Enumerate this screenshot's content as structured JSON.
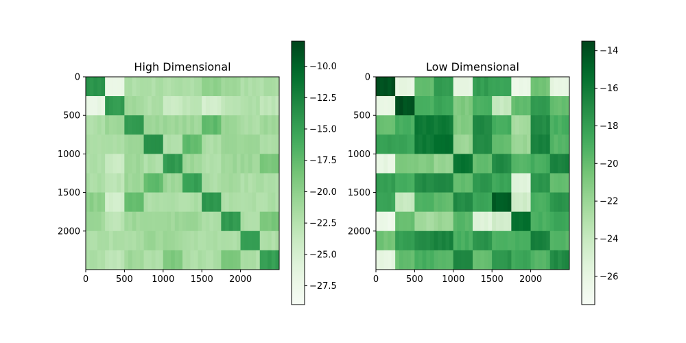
{
  "chart_data": [
    {
      "type": "heatmap",
      "title": "High Dimensional",
      "xlabel": "",
      "ylabel": "",
      "colormap": "Greens",
      "n": 2500,
      "x_ticks": [
        0,
        500,
        1000,
        1500,
        2000
      ],
      "y_ticks": [
        0,
        500,
        1000,
        1500,
        2000
      ],
      "x_tick_labels": [
        "0",
        "500",
        "1000",
        "1500",
        "2000"
      ],
      "y_tick_labels": [
        "0",
        "500",
        "1000",
        "1500",
        "2000"
      ],
      "block_boundaries": [
        0,
        250,
        500,
        750,
        1000,
        1250,
        1500,
        1750,
        2000,
        2250,
        2500
      ],
      "block_values": [
        [
          -14.0,
          -27.0,
          -22.0,
          -22.0,
          -22.0,
          -22.0,
          -20.0,
          -21.0,
          -22.0,
          -22.0
        ],
        [
          -27.0,
          -14.5,
          -21.0,
          -22.0,
          -24.0,
          -23.0,
          -25.0,
          -23.0,
          -22.0,
          -23.0
        ],
        [
          -22.0,
          -21.0,
          -14.5,
          -21.0,
          -21.0,
          -21.0,
          -17.5,
          -21.0,
          -22.0,
          -21.0
        ],
        [
          -22.0,
          -22.0,
          -21.0,
          -14.0,
          -22.0,
          -17.5,
          -22.0,
          -21.0,
          -21.0,
          -22.0
        ],
        [
          -22.0,
          -24.0,
          -21.0,
          -22.0,
          -14.5,
          -21.0,
          -22.0,
          -21.0,
          -21.0,
          -19.0
        ],
        [
          -22.0,
          -23.0,
          -21.0,
          -17.5,
          -21.0,
          -15.0,
          -22.0,
          -21.0,
          -22.0,
          -22.0
        ],
        [
          -20.0,
          -25.0,
          -17.5,
          -22.0,
          -22.0,
          -22.0,
          -14.0,
          -22.0,
          -22.0,
          -22.0
        ],
        [
          -21.0,
          -23.0,
          -21.0,
          -21.0,
          -21.0,
          -21.0,
          -22.0,
          -14.5,
          -22.0,
          -19.0
        ],
        [
          -22.0,
          -22.0,
          -22.0,
          -21.0,
          -21.0,
          -22.0,
          -22.0,
          -22.0,
          -14.5,
          -22.0
        ],
        [
          -22.0,
          -23.0,
          -21.0,
          -22.0,
          -19.0,
          -22.0,
          -22.0,
          -19.0,
          -22.0,
          -15.0
        ]
      ],
      "colorbar": {
        "vmin": -29.0,
        "vmax": -8.0,
        "ticks": [
          -10.0,
          -12.5,
          -15.0,
          -17.5,
          -20.0,
          -22.5,
          -25.0,
          -27.5
        ],
        "tick_labels": [
          "−10.0",
          "−12.5",
          "−15.0",
          "−17.5",
          "−20.0",
          "−22.5",
          "−25.0",
          "−27.5"
        ]
      }
    },
    {
      "type": "heatmap",
      "title": "Low Dimensional",
      "xlabel": "",
      "ylabel": "",
      "colormap": "Greens",
      "n": 2500,
      "x_ticks": [
        0,
        500,
        1000,
        1500,
        2000
      ],
      "y_ticks": [
        0,
        500,
        1000,
        1500,
        2000
      ],
      "x_tick_labels": [
        "0",
        "500",
        "1000",
        "1500",
        "2000"
      ],
      "y_tick_labels": [
        "0",
        "500",
        "1000",
        "1500",
        "2000"
      ],
      "block_boundaries": [
        0,
        250,
        500,
        750,
        1000,
        1250,
        1500,
        1750,
        2000,
        2250,
        2500
      ],
      "block_values": [
        [
          -14.0,
          -26.0,
          -20.0,
          -18.0,
          -26.0,
          -18.0,
          -18.5,
          -26.5,
          -20.5,
          -26.0
        ],
        [
          -26.0,
          -14.0,
          -19.0,
          -18.5,
          -21.0,
          -19.0,
          -24.0,
          -20.0,
          -18.0,
          -20.0
        ],
        [
          -20.0,
          -19.0,
          -16.0,
          -16.0,
          -21.0,
          -17.0,
          -19.0,
          -22.5,
          -17.0,
          -19.0
        ],
        [
          -18.0,
          -18.5,
          -16.0,
          -15.5,
          -22.0,
          -17.0,
          -20.0,
          -22.0,
          -16.5,
          -19.5
        ],
        [
          -26.0,
          -21.0,
          -21.0,
          -22.0,
          -15.5,
          -20.0,
          -17.0,
          -19.5,
          -19.0,
          -16.5
        ],
        [
          -18.0,
          -19.0,
          -17.0,
          -17.0,
          -20.0,
          -17.5,
          -18.5,
          -25.5,
          -17.5,
          -20.0
        ],
        [
          -18.5,
          -24.0,
          -19.0,
          -20.0,
          -17.0,
          -18.5,
          -14.5,
          -24.5,
          -19.0,
          -17.5
        ],
        [
          -26.5,
          -20.0,
          -22.5,
          -22.0,
          -19.5,
          -25.5,
          -24.5,
          -15.5,
          -19.0,
          -18.5
        ],
        [
          -20.5,
          -18.0,
          -17.0,
          -16.5,
          -19.0,
          -17.5,
          -19.0,
          -19.0,
          -16.5,
          -19.5
        ],
        [
          -26.0,
          -20.0,
          -19.0,
          -19.5,
          -16.5,
          -20.0,
          -17.5,
          -18.5,
          -19.5,
          -17.0
        ]
      ],
      "colorbar": {
        "vmin": -27.5,
        "vmax": -13.5,
        "ticks": [
          -14,
          -16,
          -18,
          -20,
          -22,
          -24,
          -26
        ],
        "tick_labels": [
          "−14",
          "−16",
          "−18",
          "−20",
          "−22",
          "−24",
          "−26"
        ]
      }
    }
  ]
}
